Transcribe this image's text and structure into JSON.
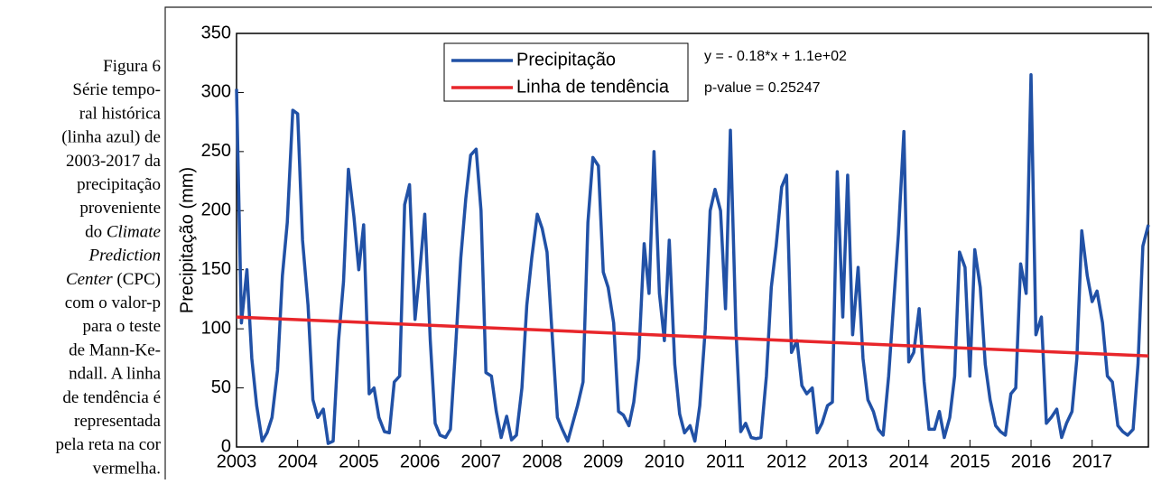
{
  "caption": [
    [
      {
        "text": "Figura 6"
      }
    ],
    [
      {
        "text": "Série tempo-"
      }
    ],
    [
      {
        "text": "ral histórica"
      }
    ],
    [
      {
        "text": "(linha azul) de"
      }
    ],
    [
      {
        "text": "2003-2017 da"
      }
    ],
    [
      {
        "text": "precipitação"
      }
    ],
    [
      {
        "text": "proveniente"
      }
    ],
    [
      {
        "text": "do "
      },
      {
        "text": "Climate",
        "italic": true
      }
    ],
    [
      {
        "text": "Prediction",
        "italic": true
      }
    ],
    [
      {
        "text": "Center",
        "italic": true
      },
      {
        "text": " (CPC)"
      }
    ],
    [
      {
        "text": "com o valor-p"
      }
    ],
    [
      {
        "text": "para o teste"
      }
    ],
    [
      {
        "text": "de Mann-Ke-"
      }
    ],
    [
      {
        "text": "ndall. A linha"
      }
    ],
    [
      {
        "text": "de tendência é"
      }
    ],
    [
      {
        "text": "representada"
      }
    ],
    [
      {
        "text": "pela reta na cor"
      }
    ],
    [
      {
        "text": "vermelha."
      }
    ]
  ],
  "chart_data": {
    "type": "line",
    "ylabel": "Precipitação (mm)",
    "annotations": [
      "y = - 0.18*x + 1.1e+02",
      "p-value = 0.25247"
    ],
    "xlim": [
      2003,
      2017.92
    ],
    "xticks": [
      2003,
      2004,
      2005,
      2006,
      2007,
      2008,
      2009,
      2010,
      2011,
      2012,
      2013,
      2014,
      2015,
      2016,
      2017
    ],
    "ylim": [
      0,
      350
    ],
    "yticks": [
      0,
      50,
      100,
      150,
      200,
      250,
      300,
      350
    ],
    "grid": false,
    "legend": "top",
    "x": [
      2003,
      2003.08,
      2003.17,
      2003.25,
      2003.33,
      2003.42,
      2003.5,
      2003.58,
      2003.67,
      2003.75,
      2003.83,
      2003.92,
      2004,
      2004.08,
      2004.17,
      2004.25,
      2004.33,
      2004.42,
      2004.5,
      2004.58,
      2004.67,
      2004.75,
      2004.83,
      2004.92,
      2005,
      2005.08,
      2005.17,
      2005.25,
      2005.33,
      2005.42,
      2005.5,
      2005.58,
      2005.67,
      2005.75,
      2005.83,
      2005.92,
      2006,
      2006.08,
      2006.17,
      2006.25,
      2006.33,
      2006.42,
      2006.5,
      2006.58,
      2006.67,
      2006.75,
      2006.83,
      2006.92,
      2007,
      2007.08,
      2007.17,
      2007.25,
      2007.33,
      2007.42,
      2007.5,
      2007.58,
      2007.67,
      2007.75,
      2007.83,
      2007.92,
      2008,
      2008.08,
      2008.17,
      2008.25,
      2008.33,
      2008.42,
      2008.5,
      2008.58,
      2008.67,
      2008.75,
      2008.83,
      2008.92,
      2009,
      2009.08,
      2009.17,
      2009.25,
      2009.33,
      2009.42,
      2009.5,
      2009.58,
      2009.67,
      2009.75,
      2009.83,
      2009.92,
      2010,
      2010.08,
      2010.17,
      2010.25,
      2010.33,
      2010.42,
      2010.5,
      2010.58,
      2010.67,
      2010.75,
      2010.83,
      2010.92,
      2011,
      2011.08,
      2011.17,
      2011.25,
      2011.33,
      2011.42,
      2011.5,
      2011.58,
      2011.67,
      2011.75,
      2011.83,
      2011.92,
      2012,
      2012.08,
      2012.17,
      2012.25,
      2012.33,
      2012.42,
      2012.5,
      2012.58,
      2012.67,
      2012.75,
      2012.83,
      2012.92,
      2013,
      2013.08,
      2013.17,
      2013.25,
      2013.33,
      2013.42,
      2013.5,
      2013.58,
      2013.67,
      2013.75,
      2013.83,
      2013.92,
      2014,
      2014.08,
      2014.17,
      2014.25,
      2014.33,
      2014.42,
      2014.5,
      2014.58,
      2014.67,
      2014.75,
      2014.83,
      2014.92,
      2015,
      2015.08,
      2015.17,
      2015.25,
      2015.33,
      2015.42,
      2015.5,
      2015.58,
      2015.67,
      2015.75,
      2015.83,
      2015.92,
      2016,
      2016.08,
      2016.17,
      2016.25,
      2016.33,
      2016.42,
      2016.5,
      2016.58,
      2016.67,
      2016.75,
      2016.83,
      2016.92,
      2017,
      2017.08,
      2017.17,
      2017.25,
      2017.33,
      2017.42,
      2017.5,
      2017.58,
      2017.67,
      2017.75,
      2017.83,
      2017.92
    ],
    "series": [
      {
        "name": "Precipitação",
        "color": "#2151a6",
        "values": [
          303,
          105,
          150,
          75,
          35,
          5,
          12,
          25,
          65,
          145,
          190,
          285,
          282,
          175,
          120,
          40,
          25,
          32,
          3,
          5,
          90,
          140,
          235,
          195,
          150,
          188,
          45,
          50,
          25,
          13,
          12,
          55,
          60,
          205,
          222,
          108,
          150,
          197,
          90,
          20,
          10,
          8,
          15,
          80,
          160,
          210,
          247,
          252,
          200,
          63,
          60,
          30,
          8,
          26,
          6,
          10,
          50,
          120,
          160,
          197,
          185,
          165,
          90,
          25,
          15,
          5,
          20,
          35,
          55,
          190,
          245,
          238,
          148,
          135,
          105,
          30,
          27,
          18,
          38,
          75,
          172,
          130,
          250,
          130,
          90,
          175,
          70,
          28,
          12,
          18,
          5,
          35,
          100,
          200,
          218,
          200,
          117,
          268,
          100,
          13,
          20,
          8,
          7,
          8,
          60,
          135,
          170,
          220,
          230,
          80,
          90,
          52,
          45,
          50,
          12,
          20,
          35,
          38,
          233,
          110,
          230,
          95,
          152,
          75,
          40,
          30,
          15,
          10,
          60,
          120,
          180,
          267,
          72,
          80,
          117,
          55,
          15,
          15,
          30,
          8,
          25,
          60,
          165,
          152,
          60,
          167,
          135,
          70,
          40,
          18,
          13,
          10,
          45,
          50,
          155,
          130,
          315,
          95,
          110,
          20,
          25,
          32,
          8,
          20,
          30,
          75,
          183,
          145,
          123,
          132,
          105,
          60,
          55,
          18,
          13,
          10,
          15,
          70,
          170,
          188
        ]
      },
      {
        "name": "Linha de tendência",
        "color": "#e8262b",
        "x": [
          2003,
          2017.92
        ],
        "values": [
          110,
          77
        ]
      }
    ]
  }
}
